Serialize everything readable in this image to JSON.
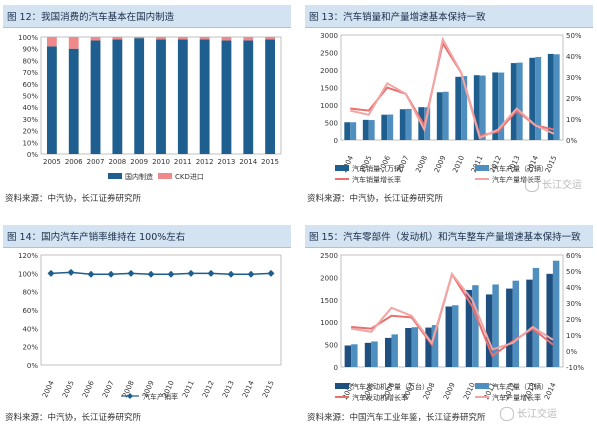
{
  "panels": [
    {
      "title": "图 12：我国消费的汽车基本在国内制造",
      "source": "资料来源：中汽协，长江证券研究所",
      "chart_data": {
        "type": "bar",
        "stacked": true,
        "categories": [
          "2005",
          "2006",
          "2007",
          "2008",
          "2009",
          "2010",
          "2011",
          "2012",
          "2013",
          "2014",
          "2015"
        ],
        "series": [
          {
            "name": "国内制造",
            "color": "#1f5f8f",
            "values": [
              0.92,
              0.9,
              0.97,
              0.98,
              0.99,
              0.98,
              0.98,
              0.98,
              0.97,
              0.97,
              0.98
            ]
          },
          {
            "name": "CKD进口",
            "color": "#f08a8a",
            "values": [
              0.08,
              0.1,
              0.03,
              0.02,
              0.01,
              0.02,
              0.02,
              0.02,
              0.03,
              0.03,
              0.02
            ]
          }
        ],
        "ylim": [
          0,
          1
        ],
        "yticks": [
          "0%",
          "10%",
          "20%",
          "30%",
          "40%",
          "50%",
          "60%",
          "70%",
          "80%",
          "90%",
          "100%"
        ]
      }
    },
    {
      "title": "图 13：汽车销量和产量增速基本保持一致",
      "source": "资料来源：中汽协，长江证券研究所",
      "chart_data": {
        "type": "bar+line",
        "categories": [
          "2004",
          "2005",
          "2006",
          "2007",
          "2008",
          "2009",
          "2010",
          "2011",
          "2012",
          "2013",
          "2014",
          "2015"
        ],
        "bars": [
          {
            "name": "汽车销量（万辆）",
            "color": "#1f5f8f",
            "values": [
              507,
              576,
              722,
              879,
              938,
              1364,
              1806,
              1851,
              1931,
              2198,
              2349,
              2460
            ]
          },
          {
            "name": "汽车产量（万辆）",
            "color": "#4f8fc0",
            "values": [
              507,
              570,
              728,
              888,
              935,
              1379,
              1826,
              1842,
              1927,
              2212,
              2372,
              2450
            ]
          }
        ],
        "lines": [
          {
            "name": "汽车销量增长率",
            "color": "#e9706f",
            "values": [
              0.15,
              0.14,
              0.25,
              0.22,
              0.07,
              0.46,
              0.32,
              0.02,
              0.04,
              0.14,
              0.07,
              0.05
            ]
          },
          {
            "name": "汽车产量增长率",
            "color": "#f1a5a4",
            "values": [
              0.14,
              0.12,
              0.27,
              0.22,
              0.05,
              0.48,
              0.32,
              0.01,
              0.05,
              0.15,
              0.07,
              0.03
            ]
          }
        ],
        "ylim": [
          0,
          3000
        ],
        "yticks": [
          "0",
          "500",
          "1000",
          "1500",
          "2000",
          "2500",
          "3000"
        ],
        "y2lim": [
          0,
          0.5
        ],
        "y2ticks": [
          "0%",
          "10%",
          "20%",
          "30%",
          "40%",
          "50%"
        ]
      }
    },
    {
      "title": "图 14：国内汽车产销率维持在 100%左右",
      "source": "资料来源：中汽协，长江证券研究所",
      "chart_data": {
        "type": "line",
        "categories": [
          "2004",
          "2005",
          "2006",
          "2007",
          "2008",
          "2009",
          "2010",
          "2011",
          "2012",
          "2013",
          "2014",
          "2015"
        ],
        "series": [
          {
            "name": "汽车产销率",
            "color": "#1f5f8f",
            "values": [
              1.0,
              1.01,
              0.99,
              0.99,
              1.0,
              0.99,
              0.99,
              1.0,
              1.0,
              0.99,
              0.99,
              1.0
            ]
          }
        ],
        "ylim": [
          0,
          1.2
        ],
        "yticks": [
          "0%",
          "20%",
          "40%",
          "60%",
          "80%",
          "100%",
          "120%"
        ]
      }
    },
    {
      "title": "图 15：汽车零部件（发动机）和汽车整车产量增速基本保持一致",
      "source": "资料来源：中国汽车工业年鉴，长江证券研究所",
      "chart_data": {
        "type": "bar+line",
        "categories": [
          "2004",
          "2005",
          "2006",
          "2007",
          "2008",
          "2009",
          "2010",
          "2011",
          "2012",
          "2013",
          "2014"
        ],
        "bars": [
          {
            "name": "汽车发动机产量（万台）",
            "color": "#1f4f7f",
            "values": [
              480,
              540,
              650,
              870,
              880,
              1350,
              1720,
              1620,
              1750,
              1950,
              2080
            ]
          },
          {
            "name": "汽车产量（万辆）",
            "color": "#4f8fc0",
            "values": [
              507,
              570,
              728,
              888,
              935,
              1379,
              1826,
              1842,
              1927,
              2212,
              2372
            ]
          }
        ],
        "lines": [
          {
            "name": "汽车发动机增长率",
            "color": "#e9706f",
            "values": [
              0.15,
              0.14,
              0.22,
              0.21,
              0.04,
              0.48,
              0.28,
              -0.03,
              0.06,
              0.14,
              0.04
            ]
          },
          {
            "name": "汽车产量增长率",
            "color": "#f1a5a4",
            "values": [
              0.14,
              0.12,
              0.27,
              0.22,
              0.05,
              0.48,
              0.32,
              0.01,
              0.05,
              0.15,
              0.07
            ]
          }
        ],
        "ylim": [
          0,
          2500
        ],
        "yticks": [
          "0",
          "500",
          "1000",
          "1500",
          "2000",
          "2500"
        ],
        "y2lim": [
          -0.1,
          0.6
        ],
        "y2ticks": [
          "-10%",
          "0%",
          "10%",
          "20%",
          "30%",
          "40%",
          "50%",
          "60%"
        ]
      }
    }
  ],
  "watermark": "长江交运"
}
